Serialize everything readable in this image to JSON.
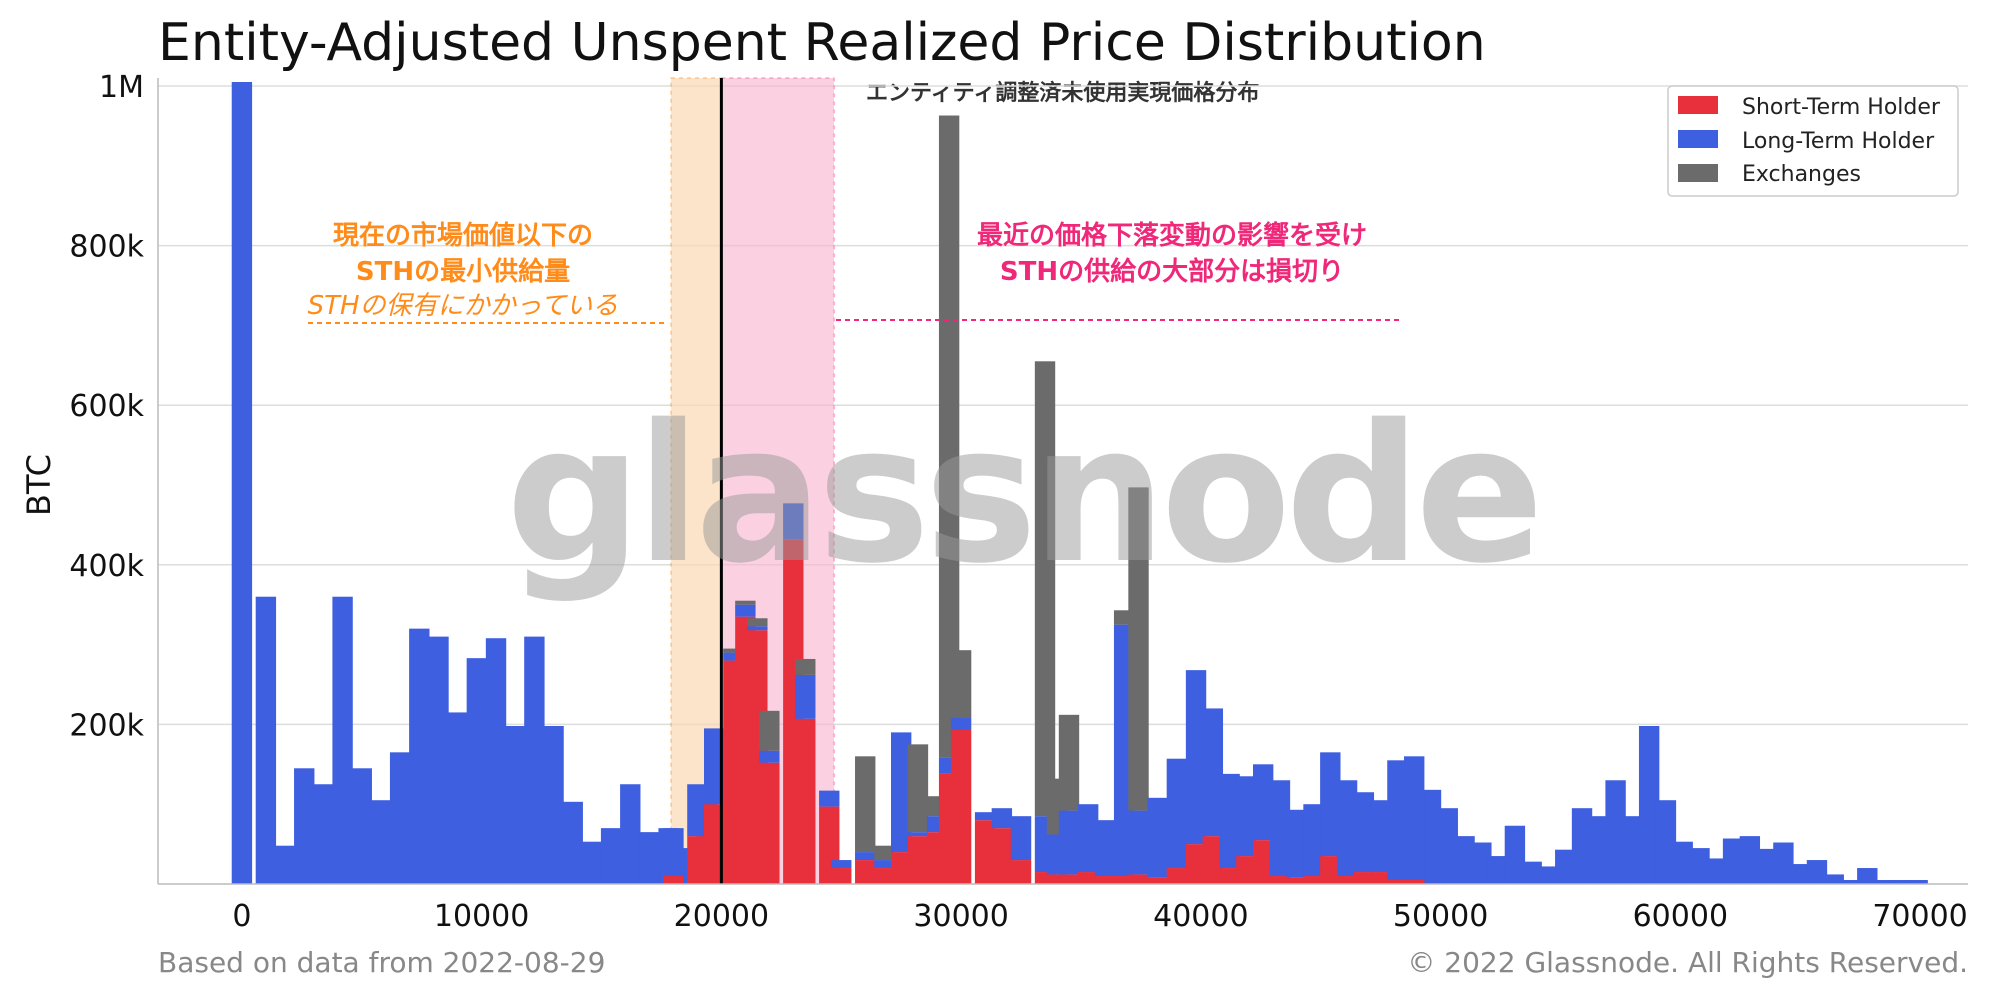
{
  "chart_data": {
    "type": "bar",
    "title": "Entity-Adjusted Unspent Realized Price Distribution",
    "subtitle": "エンティティ調整済未使用実現価格分布",
    "ylabel": "BTC",
    "xlabel": "",
    "xlim": [
      -3500,
      72000
    ],
    "ylim": [
      0,
      1010000
    ],
    "bin_width": 1000,
    "x_ticks": [
      0,
      10000,
      20000,
      30000,
      40000,
      50000,
      60000,
      70000
    ],
    "x_tick_labels": [
      "0",
      "10000",
      "20000",
      "30000",
      "40000",
      "50000",
      "60000",
      "70000"
    ],
    "y_ticks": [
      200000,
      400000,
      600000,
      800000,
      1000000
    ],
    "y_tick_labels": [
      "200k",
      "400k",
      "600k",
      "800k",
      "1M"
    ],
    "grid": true,
    "legend_position": "top-right",
    "colors": {
      "short_term": "#e8303c",
      "long_term": "#3e5fe0",
      "exchanges": "#6b6b6b",
      "orange_band": "#fbd9b5",
      "pink_band": "#f9b3d0",
      "orange_text": "#ff8c1a",
      "pink_text": "#f0287a"
    },
    "series": [
      {
        "name": "Short-Term Holder",
        "bins": [
          {
            "x": 18000,
            "sth": 10000,
            "lth": 60000,
            "exch": 0
          },
          {
            "x": 19000,
            "sth": 60000,
            "lth": 65000,
            "exch": 0
          },
          {
            "x": 19700,
            "sth": 100000,
            "lth": 95000,
            "exch": 0
          },
          {
            "x": 20500,
            "sth": 280000,
            "lth": 10000,
            "exch": 5000
          },
          {
            "x": 21000,
            "sth": 335000,
            "lth": 15000,
            "exch": 5000
          },
          {
            "x": 21500,
            "sth": 318000,
            "lth": 5000,
            "exch": 10000
          },
          {
            "x": 22000,
            "sth": 152000,
            "lth": 15000,
            "exch": 50000
          },
          {
            "x": 23000,
            "sth": 432000,
            "lth": 45000,
            "exch": 0
          },
          {
            "x": 23500,
            "sth": 207000,
            "lth": 55000,
            "exch": 20000
          },
          {
            "x": 24500,
            "sth": 97000,
            "lth": 20000,
            "exch": 0
          },
          {
            "x": 25000,
            "sth": 20000,
            "lth": 10000,
            "exch": 0
          },
          {
            "x": 26000,
            "sth": 30000,
            "lth": 10000,
            "exch": 120000
          },
          {
            "x": 26800,
            "sth": 20000,
            "lth": 10000,
            "exch": 18000
          },
          {
            "x": 27500,
            "sth": 40000,
            "lth": 150000,
            "exch": 0
          },
          {
            "x": 28200,
            "sth": 60000,
            "lth": 5000,
            "exch": 110000
          },
          {
            "x": 29000,
            "sth": 65000,
            "lth": 20000,
            "exch": 25000
          },
          {
            "x": 29500,
            "sth": 138000,
            "lth": 20000,
            "exch": 805000
          },
          {
            "x": 30000,
            "sth": 193000,
            "lth": 15000,
            "exch": 85000
          },
          {
            "x": 31000,
            "sth": 80000,
            "lth": 10000,
            "exch": 0
          },
          {
            "x": 31700,
            "sth": 70000,
            "lth": 25000,
            "exch": 0
          },
          {
            "x": 32500,
            "sth": 30000,
            "lth": 55000,
            "exch": 0
          },
          {
            "x": 33500,
            "sth": 15000,
            "lth": 70000,
            "exch": 570000
          },
          {
            "x": 34000,
            "sth": 12000,
            "lth": 50000,
            "exch": 70000
          },
          {
            "x": 34500,
            "sth": 12000,
            "lth": 80000,
            "exch": 120000
          },
          {
            "x": 35300,
            "sth": 15000,
            "lth": 85000,
            "exch": 0
          },
          {
            "x": 36000,
            "sth": 10000,
            "lth": 70000,
            "exch": 0
          },
          {
            "x": 36800,
            "sth": 10000,
            "lth": 315000,
            "exch": 18000
          },
          {
            "x": 37400,
            "sth": 12000,
            "lth": 80000,
            "exch": 405000
          },
          {
            "x": 38200,
            "sth": 8000,
            "lth": 100000,
            "exch": 0
          },
          {
            "x": 39000,
            "sth": 20000,
            "lth": 137000,
            "exch": 0
          },
          {
            "x": 39800,
            "sth": 50000,
            "lth": 218000,
            "exch": 0
          },
          {
            "x": 40500,
            "sth": 60000,
            "lth": 160000,
            "exch": 0
          },
          {
            "x": 41200,
            "sth": 20000,
            "lth": 118000,
            "exch": 0
          },
          {
            "x": 41900,
            "sth": 35000,
            "lth": 100000,
            "exch": 0
          },
          {
            "x": 42600,
            "sth": 55000,
            "lth": 95000,
            "exch": 0
          },
          {
            "x": 43300,
            "sth": 10000,
            "lth": 120000,
            "exch": 0
          },
          {
            "x": 44000,
            "sth": 8000,
            "lth": 85000,
            "exch": 0
          },
          {
            "x": 44700,
            "sth": 10000,
            "lth": 90000,
            "exch": 0
          },
          {
            "x": 45400,
            "sth": 35000,
            "lth": 130000,
            "exch": 0
          },
          {
            "x": 46100,
            "sth": 10000,
            "lth": 120000,
            "exch": 0
          },
          {
            "x": 46800,
            "sth": 15000,
            "lth": 100000,
            "exch": 0
          },
          {
            "x": 47500,
            "sth": 15000,
            "lth": 90000,
            "exch": 0
          },
          {
            "x": 48200,
            "sth": 5000,
            "lth": 150000,
            "exch": 0
          },
          {
            "x": 48900,
            "sth": 5000,
            "lth": 155000,
            "exch": 0
          }
        ]
      },
      {
        "name": "Long-Term Holder",
        "bins": [
          {
            "x": 0,
            "lth": 1005000
          },
          {
            "x": 1000,
            "lth": 360000
          },
          {
            "x": 1800,
            "lth": 48000
          },
          {
            "x": 2600,
            "lth": 145000
          },
          {
            "x": 3400,
            "lth": 125000
          },
          {
            "x": 4200,
            "lth": 360000
          },
          {
            "x": 5000,
            "lth": 145000
          },
          {
            "x": 5800,
            "lth": 105000
          },
          {
            "x": 6600,
            "lth": 165000
          },
          {
            "x": 7400,
            "lth": 320000
          },
          {
            "x": 8200,
            "lth": 310000
          },
          {
            "x": 9000,
            "lth": 215000
          },
          {
            "x": 9800,
            "lth": 283000
          },
          {
            "x": 10600,
            "lth": 308000
          },
          {
            "x": 11400,
            "lth": 198000
          },
          {
            "x": 12200,
            "lth": 310000
          },
          {
            "x": 13000,
            "lth": 198000
          },
          {
            "x": 13800,
            "lth": 103000
          },
          {
            "x": 14600,
            "lth": 53000
          },
          {
            "x": 15400,
            "lth": 70000
          },
          {
            "x": 16200,
            "lth": 125000
          },
          {
            "x": 17000,
            "lth": 65000
          },
          {
            "x": 17800,
            "lth": 70000
          },
          {
            "x": 18600,
            "lth": 45000
          },
          {
            "x": 19400,
            "lth": 118000
          },
          {
            "x": 49600,
            "lth": 118000
          },
          {
            "x": 50300,
            "lth": 95000
          },
          {
            "x": 51000,
            "lth": 60000
          },
          {
            "x": 51700,
            "lth": 52000
          },
          {
            "x": 52400,
            "lth": 35000
          },
          {
            "x": 53100,
            "lth": 73000
          },
          {
            "x": 53800,
            "lth": 28000
          },
          {
            "x": 54500,
            "lth": 22000
          },
          {
            "x": 55200,
            "lth": 43000
          },
          {
            "x": 55900,
            "lth": 95000
          },
          {
            "x": 56600,
            "lth": 85000
          },
          {
            "x": 57300,
            "lth": 130000
          },
          {
            "x": 58000,
            "lth": 85000
          },
          {
            "x": 58700,
            "lth": 198000
          },
          {
            "x": 59400,
            "lth": 105000
          },
          {
            "x": 60100,
            "lth": 53000
          },
          {
            "x": 60800,
            "lth": 45000
          },
          {
            "x": 61500,
            "lth": 32000
          },
          {
            "x": 62200,
            "lth": 57000
          },
          {
            "x": 62900,
            "lth": 60000
          },
          {
            "x": 63600,
            "lth": 44000
          },
          {
            "x": 64300,
            "lth": 52000
          },
          {
            "x": 65000,
            "lth": 25000
          },
          {
            "x": 65700,
            "lth": 30000
          },
          {
            "x": 66400,
            "lth": 12000
          },
          {
            "x": 67100,
            "lth": 5000
          },
          {
            "x": 67800,
            "lth": 20000
          },
          {
            "x": 68500,
            "lth": 5000
          },
          {
            "x": 69200,
            "lth": 5000
          },
          {
            "x": 69900,
            "lth": 5000
          }
        ]
      },
      {
        "name": "Exchanges",
        "bins": []
      }
    ],
    "current_price": 20000,
    "orange_band": [
      17900,
      20000
    ],
    "pink_band": [
      20000,
      24700
    ],
    "annotations": {
      "orange_line1": "現在の市場価値以下の",
      "orange_line2": "STHの最小供給量",
      "orange_line3": "STHの保有にかかっている",
      "pink_line1": "最近の価格下落変動の影響を受け",
      "pink_line2": "STHの供給の大部分は損切り"
    },
    "watermark": "glassnode"
  },
  "footer": {
    "left": "Based on data from 2022-08-29",
    "right": "© 2022 Glassnode. All Rights Reserved."
  }
}
